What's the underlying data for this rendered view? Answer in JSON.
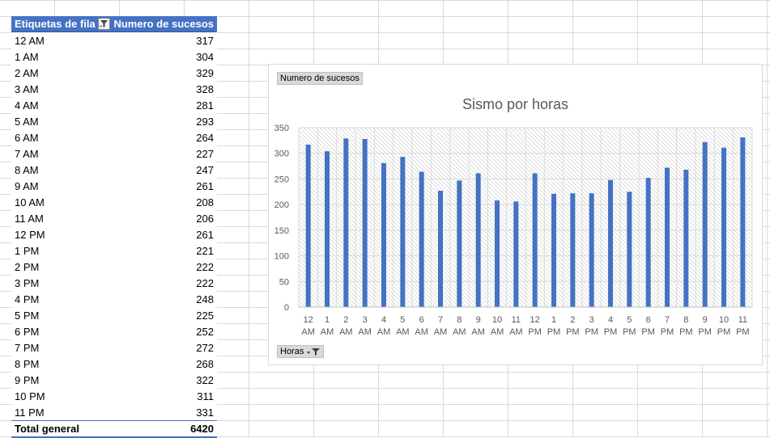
{
  "pivot": {
    "header": {
      "row_labels": "Etiquetas de fila",
      "values": "Numero de sucesos"
    },
    "filter_icon": "filter-icon",
    "rows": [
      {
        "label": "12 AM",
        "value": "317"
      },
      {
        "label": "1 AM",
        "value": "304"
      },
      {
        "label": "2 AM",
        "value": "329"
      },
      {
        "label": "3 AM",
        "value": "328"
      },
      {
        "label": "4 AM",
        "value": "281"
      },
      {
        "label": "5 AM",
        "value": "293"
      },
      {
        "label": "6 AM",
        "value": "264"
      },
      {
        "label": "7 AM",
        "value": "227"
      },
      {
        "label": "8 AM",
        "value": "247"
      },
      {
        "label": "9 AM",
        "value": "261"
      },
      {
        "label": "10 AM",
        "value": "208"
      },
      {
        "label": "11 AM",
        "value": "206"
      },
      {
        "label": "12 PM",
        "value": "261"
      },
      {
        "label": "1 PM",
        "value": "221"
      },
      {
        "label": "2 PM",
        "value": "222"
      },
      {
        "label": "3 PM",
        "value": "222"
      },
      {
        "label": "4 PM",
        "value": "248"
      },
      {
        "label": "5 PM",
        "value": "225"
      },
      {
        "label": "6 PM",
        "value": "252"
      },
      {
        "label": "7 PM",
        "value": "272"
      },
      {
        "label": "8 PM",
        "value": "268"
      },
      {
        "label": "9 PM",
        "value": "322"
      },
      {
        "label": "10 PM",
        "value": "311"
      },
      {
        "label": "11 PM",
        "value": "331"
      }
    ],
    "total": {
      "label": "Total general",
      "value": "6420"
    }
  },
  "chart": {
    "value_field_button": "Numero de sucesos",
    "axis_field_button": "Horas"
  },
  "chart_data": {
    "type": "bar",
    "title": "Sismo por horas",
    "categories": [
      "12 AM",
      "1 AM",
      "2 AM",
      "3 AM",
      "4 AM",
      "5 AM",
      "6 AM",
      "7 AM",
      "8 AM",
      "9 AM",
      "10 AM",
      "11 AM",
      "12 PM",
      "1 PM",
      "2 PM",
      "3 PM",
      "4 PM",
      "5 PM",
      "6 PM",
      "7 PM",
      "8 PM",
      "9 PM",
      "10 PM",
      "11 PM"
    ],
    "series": [
      {
        "values": [
          317,
          304,
          329,
          328,
          281,
          293,
          264,
          227,
          247,
          261,
          208,
          206,
          261,
          221,
          222,
          222,
          248,
          225,
          252,
          272,
          268,
          322,
          311,
          331
        ]
      }
    ],
    "ylim": [
      0,
      350
    ],
    "yticks": [
      0,
      50,
      100,
      150,
      200,
      250,
      300,
      350
    ],
    "bar_color": "#4472c4",
    "legend": "none",
    "grid": true
  },
  "colors": {
    "accent": "#4472c4"
  }
}
